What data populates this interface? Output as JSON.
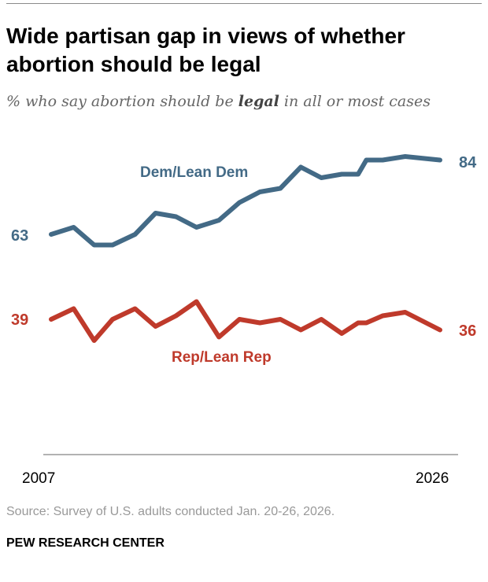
{
  "title": "Wide partisan gap in views of whether abortion should be legal",
  "subtitle": {
    "pre": "% who say abortion should be ",
    "bold": "legal",
    "post": " in all or most cases"
  },
  "source": "Source: Survey of U.S. adults conducted Jan. 20-26, 2026.",
  "brand": "PEW RESEARCH CENTER",
  "chart_data": {
    "type": "line",
    "x": [
      2007,
      2008.1,
      2009.1,
      2010,
      2011.1,
      2012.1,
      2013.1,
      2014.1,
      2015.2,
      2016.2,
      2017.2,
      2018.2,
      2019.2,
      2020.2,
      2021.2,
      2022,
      2022.4,
      2023.2,
      2024.3,
      2026
    ],
    "xticks": [
      "2007",
      "2026"
    ],
    "series": [
      {
        "name": "Dem/Lean Dem",
        "color": "#436a86",
        "values": [
          63,
          65,
          60,
          60,
          63,
          69,
          68,
          65,
          67,
          72,
          75,
          76,
          82,
          79,
          80,
          80,
          84,
          84,
          85,
          84
        ],
        "start_label": "63",
        "end_label": "84"
      },
      {
        "name": "Rep/Lean Rep",
        "color": "#bf3a2b",
        "values": [
          39,
          42,
          33,
          39,
          42,
          37,
          40,
          44,
          34,
          39,
          38,
          39,
          36,
          39,
          35,
          38,
          38,
          40,
          41,
          36
        ],
        "start_label": "39",
        "end_label": "36"
      }
    ],
    "grid": false
  }
}
